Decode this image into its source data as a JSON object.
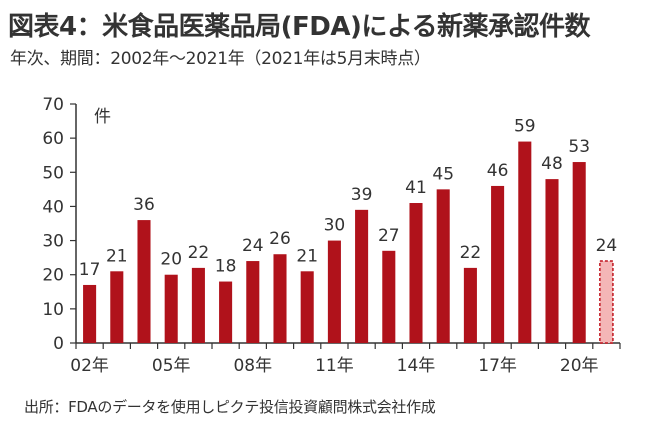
{
  "header": {
    "title": "図表4：米食品医薬品局(FDA)による新薬承認件数",
    "subtitle": "年次、期間：2002年～2021年（2021年は5月末時点）"
  },
  "footer": {
    "source": "出所：FDAのデータを使用しピクテ投信投資顧問株式会社作成"
  },
  "chart_data": {
    "type": "bar",
    "title": "図表4：米食品医薬品局(FDA)による新薬承認件数",
    "subtitle": "年次、期間：2002年～2021年（2021年は5月末時点）",
    "ylabel": "件",
    "xlabel": "",
    "ylim": [
      0,
      70
    ],
    "yticks": [
      0,
      10,
      20,
      30,
      40,
      50,
      60,
      70
    ],
    "grid": false,
    "categories": [
      "2002",
      "2003",
      "2004",
      "2005",
      "2006",
      "2007",
      "2008",
      "2009",
      "2010",
      "2011",
      "2012",
      "2013",
      "2014",
      "2015",
      "2016",
      "2017",
      "2018",
      "2019",
      "2020",
      "2021"
    ],
    "values": [
      17,
      21,
      36,
      20,
      22,
      18,
      24,
      26,
      21,
      30,
      39,
      27,
      41,
      45,
      22,
      46,
      59,
      48,
      53,
      24
    ],
    "xtick_labels": [
      "02年",
      "05年",
      "08年",
      "11年",
      "14年",
      "17年",
      "20年"
    ],
    "xtick_indices": [
      0,
      3,
      6,
      9,
      12,
      15,
      18
    ],
    "partial_year_index": 19,
    "colors": {
      "bar": "#b0121b",
      "partial_fill": "#f4b6b6",
      "partial_stroke": "#c0141e",
      "axis": "#333333"
    }
  }
}
